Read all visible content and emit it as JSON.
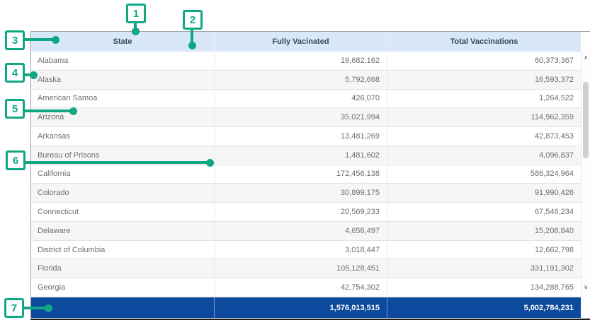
{
  "callouts": {
    "color": "#10a884",
    "marks": [
      {
        "label": "1"
      },
      {
        "label": "2"
      },
      {
        "label": "3"
      },
      {
        "label": "4"
      },
      {
        "label": "5"
      },
      {
        "label": "6"
      },
      {
        "label": "7"
      }
    ]
  },
  "table": {
    "columns": [
      {
        "label": "State"
      },
      {
        "label": "Fully Vacinated"
      },
      {
        "label": "Total Vaccinations"
      }
    ],
    "rows": [
      {
        "state": "Alabama",
        "fully_vaccinated": "19,682,162",
        "total_vaccinations": "60,373,367"
      },
      {
        "state": "Alaska",
        "fully_vaccinated": "5,792,668",
        "total_vaccinations": "16,593,372"
      },
      {
        "state": "American Samoa",
        "fully_vaccinated": "426,070",
        "total_vaccinations": "1,264,522"
      },
      {
        "state": "Arizona",
        "fully_vaccinated": "35,021,994",
        "total_vaccinations": "114,962,359"
      },
      {
        "state": "Arkansas",
        "fully_vaccinated": "13,481,269",
        "total_vaccinations": "42,873,453"
      },
      {
        "state": "Bureau of Prisons",
        "fully_vaccinated": "1,481,602",
        "total_vaccinations": "4,096,837"
      },
      {
        "state": "California",
        "fully_vaccinated": "172,456,138",
        "total_vaccinations": "586,324,964"
      },
      {
        "state": "Colorado",
        "fully_vaccinated": "30,899,175",
        "total_vaccinations": "91,990,426"
      },
      {
        "state": "Connecticut",
        "fully_vaccinated": "20,569,233",
        "total_vaccinations": "67,546,234"
      },
      {
        "state": "Delaware",
        "fully_vaccinated": "4,656,497",
        "total_vaccinations": "15,208,840"
      },
      {
        "state": "District of Columbia",
        "fully_vaccinated": "3,018,447",
        "total_vaccinations": "12,662,798"
      },
      {
        "state": "Florida",
        "fully_vaccinated": "105,128,451",
        "total_vaccinations": "331,191,302"
      },
      {
        "state": "Georgia",
        "fully_vaccinated": "42,754,302",
        "total_vaccinations": "134,288,765"
      }
    ],
    "totals": {
      "fully_vaccinated": "1,576,013,515",
      "total_vaccinations": "5,002,784,231"
    },
    "colors": {
      "header_bg": "#d9e8f6",
      "header_text": "#2e4960",
      "total_row_bg": "#0d4a9e",
      "row_text": "#6e6e6e",
      "row_alt_bg": "#f6f6f6"
    }
  },
  "scrollbar": {
    "up_icon": "∧",
    "down_icon": "∨"
  }
}
